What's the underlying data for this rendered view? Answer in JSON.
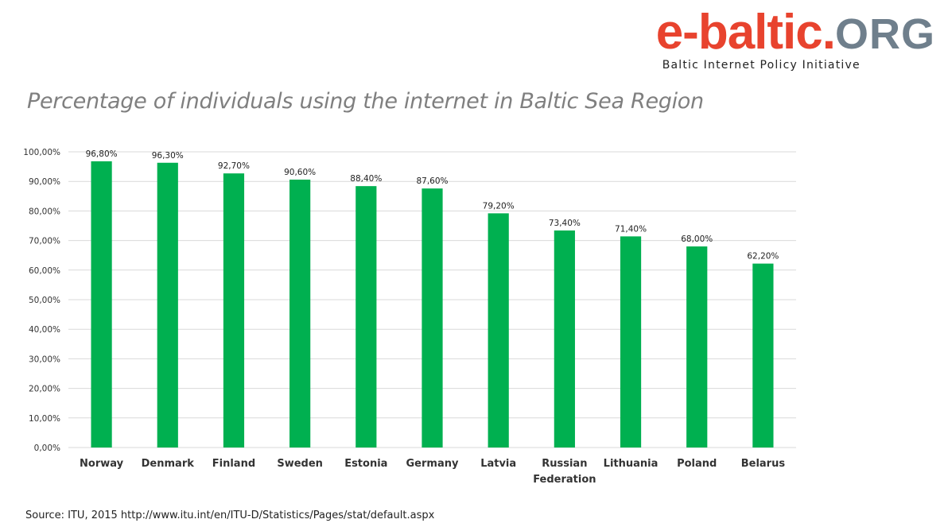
{
  "logo": {
    "brand_main": "e-baltic",
    "brand_dot": ".",
    "brand_tld": "ORG",
    "tagline": "Baltic Internet Policy Initiative",
    "colors": {
      "red": "#e8432e",
      "grey": "#6f7f8c"
    }
  },
  "chart_data": {
    "type": "bar",
    "title": "Percentage of individuals using the internet in Baltic Sea Region",
    "categories": [
      [
        "Norway"
      ],
      [
        "Denmark"
      ],
      [
        "Finland"
      ],
      [
        "Sweden"
      ],
      [
        "Estonia"
      ],
      [
        "Germany"
      ],
      [
        "Latvia"
      ],
      [
        "Russian",
        "Federation"
      ],
      [
        "Lithuania"
      ],
      [
        "Poland"
      ],
      [
        "Belarus"
      ]
    ],
    "values": [
      96.8,
      96.3,
      92.7,
      90.6,
      88.4,
      87.6,
      79.2,
      73.4,
      71.4,
      68.0,
      62.2
    ],
    "data_labels": [
      "96,80%",
      "96,30%",
      "92,70%",
      "90,60%",
      "88,40%",
      "87,60%",
      "79,20%",
      "73,40%",
      "71,40%",
      "68,00%",
      "62,20%"
    ],
    "ylim": [
      0,
      100
    ],
    "yticks": [
      0,
      10,
      20,
      30,
      40,
      50,
      60,
      70,
      80,
      90,
      100
    ],
    "ytick_labels": [
      "0,00%",
      "10,00%",
      "20,00%",
      "30,00%",
      "40,00%",
      "50,00%",
      "60,00%",
      "70,00%",
      "80,00%",
      "90,00%",
      "100,00%"
    ],
    "grid": true,
    "legend": "none",
    "bar_color": "#00b050",
    "grid_color": "#d9d9d9"
  },
  "source": "Source: ITU, 2015 http://www.itu.int/en/ITU-D/Statistics/Pages/stat/default.aspx"
}
